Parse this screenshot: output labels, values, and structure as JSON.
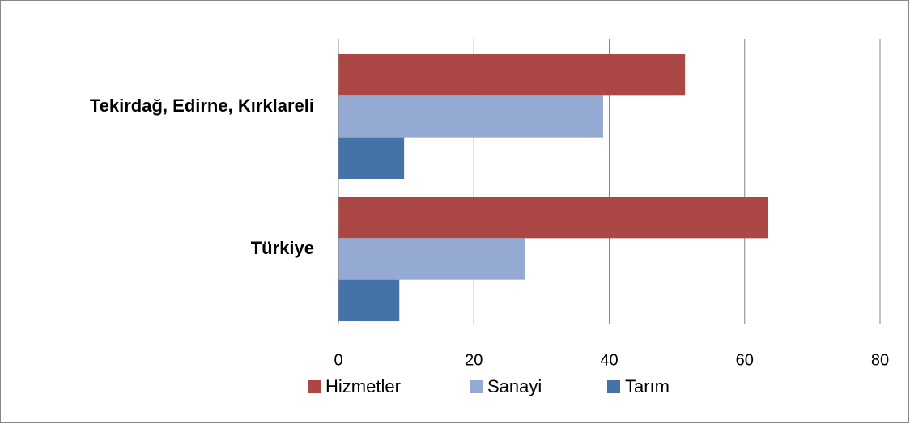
{
  "chart_data": {
    "type": "hbar",
    "categories": [
      "Tekirdağ, Edirne, Kırklareli",
      "Türkiye"
    ],
    "series": [
      {
        "name": "Hizmetler",
        "color": "#ab4744",
        "values": [
          51.2,
          63.5
        ]
      },
      {
        "name": "Sanayi",
        "color": "#95aad2",
        "values": [
          39.1,
          27.5
        ]
      },
      {
        "name": "Tarım",
        "color": "#4573a7",
        "values": [
          9.7,
          9.0
        ]
      }
    ],
    "xlim": [
      0,
      80
    ],
    "xticks": [
      0,
      20,
      40,
      60,
      80
    ],
    "grid": true,
    "legend": "bottom"
  }
}
